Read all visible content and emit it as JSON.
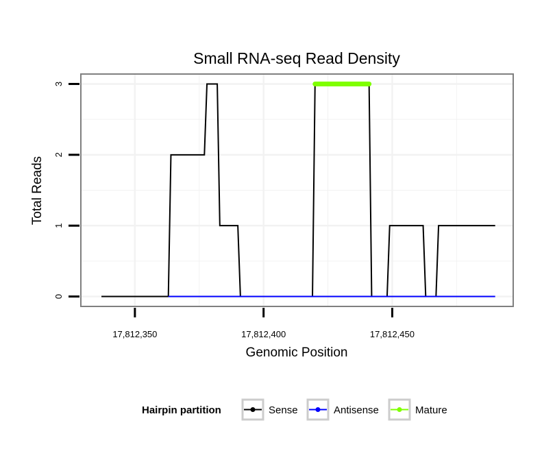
{
  "chart_data": {
    "type": "line",
    "title": "Small RNA-seq Read Density",
    "xlabel": "Genomic Position",
    "ylabel": "Total Reads",
    "xlim": [
      17812329,
      17812497
    ],
    "ylim": [
      -0.14,
      3.14
    ],
    "x_ticks": [
      17812350,
      17812400,
      17812450
    ],
    "x_tick_labels": [
      "17,812,350",
      "17,812,400",
      "17,812,450"
    ],
    "y_ticks": [
      0,
      1,
      2,
      3
    ],
    "y_tick_labels": [
      "0",
      "1",
      "2",
      "3"
    ],
    "x_minor_ticks": [
      17812375,
      17812425,
      17812475
    ],
    "y_minor_ticks": [
      0.5,
      1.5,
      2.5
    ],
    "grid": true,
    "legend": {
      "title": "Hairpin partition",
      "position": "bottom",
      "entries": [
        "Sense",
        "Antisense",
        "Mature"
      ]
    },
    "colors": {
      "Sense": "#000000",
      "Antisense": "#0000ff",
      "Mature": "#7fff00",
      "grid": "#f2f2f2",
      "panel_border": "#7f7f7f"
    },
    "series": [
      {
        "name": "Sense",
        "x": [
          17812337,
          17812363,
          17812364,
          17812377,
          17812378,
          17812382,
          17812383,
          17812390,
          17812391,
          17812419,
          17812420,
          17812441,
          17812442,
          17812448,
          17812449,
          17812462,
          17812463,
          17812467,
          17812468,
          17812490
        ],
        "y": [
          0,
          0,
          2,
          2,
          3,
          3,
          1,
          1,
          0,
          0,
          3,
          3,
          0,
          0,
          1,
          1,
          0,
          0,
          1,
          1
        ]
      },
      {
        "name": "Antisense",
        "x": [
          17812363,
          17812490
        ],
        "y": [
          0,
          0
        ]
      },
      {
        "name": "Mature",
        "x": [
          17812420,
          17812441
        ],
        "y": [
          3,
          3
        ]
      }
    ]
  }
}
